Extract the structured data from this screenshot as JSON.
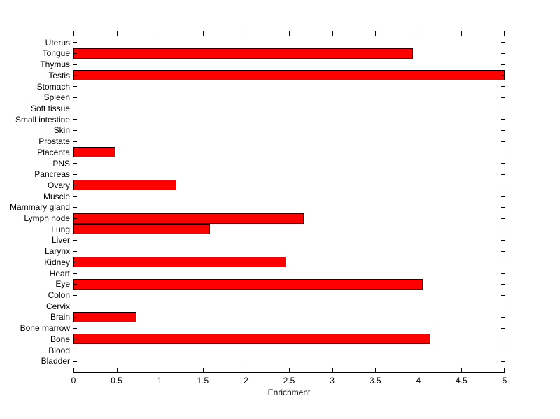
{
  "chart_data": {
    "type": "bar",
    "orientation": "horizontal",
    "title": "",
    "xlabel": "Enrichment",
    "ylabel": "",
    "xlim": [
      0,
      5
    ],
    "xtick_labels": [
      "0",
      "0.5",
      "1",
      "1.5",
      "2",
      "2.5",
      "3",
      "3.5",
      "4",
      "4.5",
      "5"
    ],
    "xtick_values": [
      0,
      0.5,
      1,
      1.5,
      2,
      2.5,
      3,
      3.5,
      4,
      4.5,
      5
    ],
    "grid": false,
    "legend": null,
    "bar_color": "#ff0000",
    "bar_edge_color": "#000000",
    "axis_color": "#000000",
    "background_color": "#ffffff",
    "categories": [
      "Uterus",
      "Tongue",
      "Thymus",
      "Testis",
      "Stomach",
      "Spleen",
      "Soft tissue",
      "Small intestine",
      "Skin",
      "Prostate",
      "Placenta",
      "PNS",
      "Pancreas",
      "Ovary",
      "Muscle",
      "Mammary gland",
      "Lymph node",
      "Lung",
      "Liver",
      "Larynx",
      "Kidney",
      "Heart",
      "Eye",
      "Colon",
      "Cervix",
      "Brain",
      "Bone marrow",
      "Bone",
      "Blood",
      "Bladder"
    ],
    "values": [
      0,
      3.94,
      0,
      5,
      0,
      0,
      0,
      0,
      0,
      0,
      0.49,
      0,
      0,
      1.19,
      0,
      0,
      2.67,
      1.58,
      0,
      0,
      2.47,
      0,
      4.05,
      0,
      0,
      0.73,
      0,
      4.14,
      0,
      0
    ]
  }
}
